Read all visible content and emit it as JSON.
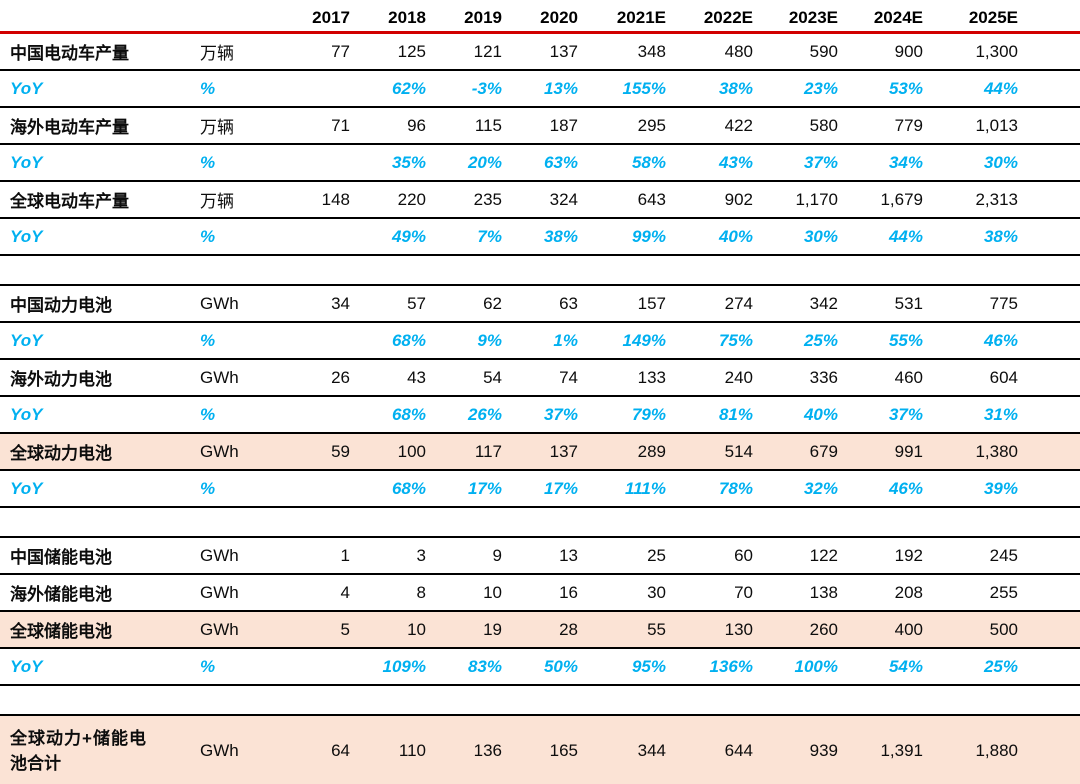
{
  "colors": {
    "header_rule_red": "#d10000",
    "row_line_black": "#000000",
    "yoy_blue": "#00b0f0",
    "highlight_peach": "#fbe3d5",
    "text": "#0d0d0d",
    "background": "#ffffff"
  },
  "table": {
    "year_columns": [
      "2017",
      "2018",
      "2019",
      "2020",
      "2021E",
      "2022E",
      "2023E",
      "2024E",
      "2025E"
    ],
    "units": {
      "vehicles": "万辆",
      "energy": "GWh",
      "percent": "%"
    },
    "rows": [
      {
        "kind": "data",
        "label": "中国电动车产量",
        "unit": "万辆",
        "highlight": false,
        "values": [
          "77",
          "125",
          "121",
          "137",
          "348",
          "480",
          "590",
          "900",
          "1,300"
        ]
      },
      {
        "kind": "yoy",
        "label": "YoY",
        "unit": "%",
        "values": [
          "",
          "62%",
          "-3%",
          "13%",
          "155%",
          "38%",
          "23%",
          "53%",
          "44%"
        ]
      },
      {
        "kind": "data",
        "label": "海外电动车产量",
        "unit": "万辆",
        "highlight": false,
        "values": [
          "71",
          "96",
          "115",
          "187",
          "295",
          "422",
          "580",
          "779",
          "1,013"
        ]
      },
      {
        "kind": "yoy",
        "label": "YoY",
        "unit": "%",
        "values": [
          "",
          "35%",
          "20%",
          "63%",
          "58%",
          "43%",
          "37%",
          "34%",
          "30%"
        ]
      },
      {
        "kind": "data",
        "label": "全球电动车产量",
        "unit": "万辆",
        "highlight": false,
        "values": [
          "148",
          "220",
          "235",
          "324",
          "643",
          "902",
          "1,170",
          "1,679",
          "2,313"
        ]
      },
      {
        "kind": "yoy",
        "label": "YoY",
        "unit": "%",
        "values": [
          "",
          "49%",
          "7%",
          "38%",
          "99%",
          "40%",
          "30%",
          "44%",
          "38%"
        ]
      },
      {
        "kind": "spacer"
      },
      {
        "kind": "data",
        "label": "中国动力电池",
        "unit": "GWh",
        "highlight": false,
        "values": [
          "34",
          "57",
          "62",
          "63",
          "157",
          "274",
          "342",
          "531",
          "775"
        ]
      },
      {
        "kind": "yoy",
        "label": "YoY",
        "unit": "%",
        "values": [
          "",
          "68%",
          "9%",
          "1%",
          "149%",
          "75%",
          "25%",
          "55%",
          "46%"
        ]
      },
      {
        "kind": "data",
        "label": "海外动力电池",
        "unit": "GWh",
        "highlight": false,
        "values": [
          "26",
          "43",
          "54",
          "74",
          "133",
          "240",
          "336",
          "460",
          "604"
        ]
      },
      {
        "kind": "yoy",
        "label": "YoY",
        "unit": "%",
        "values": [
          "",
          "68%",
          "26%",
          "37%",
          "79%",
          "81%",
          "40%",
          "37%",
          "31%"
        ]
      },
      {
        "kind": "data",
        "label": "全球动力电池",
        "unit": "GWh",
        "highlight": true,
        "values": [
          "59",
          "100",
          "117",
          "137",
          "289",
          "514",
          "679",
          "991",
          "1,380"
        ]
      },
      {
        "kind": "yoy",
        "label": "YoY",
        "unit": "%",
        "values": [
          "",
          "68%",
          "17%",
          "17%",
          "111%",
          "78%",
          "32%",
          "46%",
          "39%"
        ]
      },
      {
        "kind": "spacer"
      },
      {
        "kind": "data",
        "label": "中国储能电池",
        "unit": "GWh",
        "highlight": false,
        "values": [
          "1",
          "3",
          "9",
          "13",
          "25",
          "60",
          "122",
          "192",
          "245"
        ]
      },
      {
        "kind": "data",
        "label": "海外储能电池",
        "unit": "GWh",
        "highlight": false,
        "values": [
          "4",
          "8",
          "10",
          "16",
          "30",
          "70",
          "138",
          "208",
          "255"
        ]
      },
      {
        "kind": "data",
        "label": "全球储能电池",
        "unit": "GWh",
        "highlight": true,
        "values": [
          "5",
          "10",
          "19",
          "28",
          "55",
          "130",
          "260",
          "400",
          "500"
        ]
      },
      {
        "kind": "yoy",
        "label": "YoY",
        "unit": "%",
        "values": [
          "",
          "109%",
          "83%",
          "50%",
          "95%",
          "136%",
          "100%",
          "54%",
          "25%"
        ]
      },
      {
        "kind": "spacer"
      },
      {
        "kind": "data",
        "label": "全球动力+储能电池合计",
        "unit": "GWh",
        "highlight": true,
        "tall": true,
        "values": [
          "64",
          "110",
          "136",
          "165",
          "344",
          "644",
          "939",
          "1,391",
          "1,880"
        ]
      }
    ]
  }
}
